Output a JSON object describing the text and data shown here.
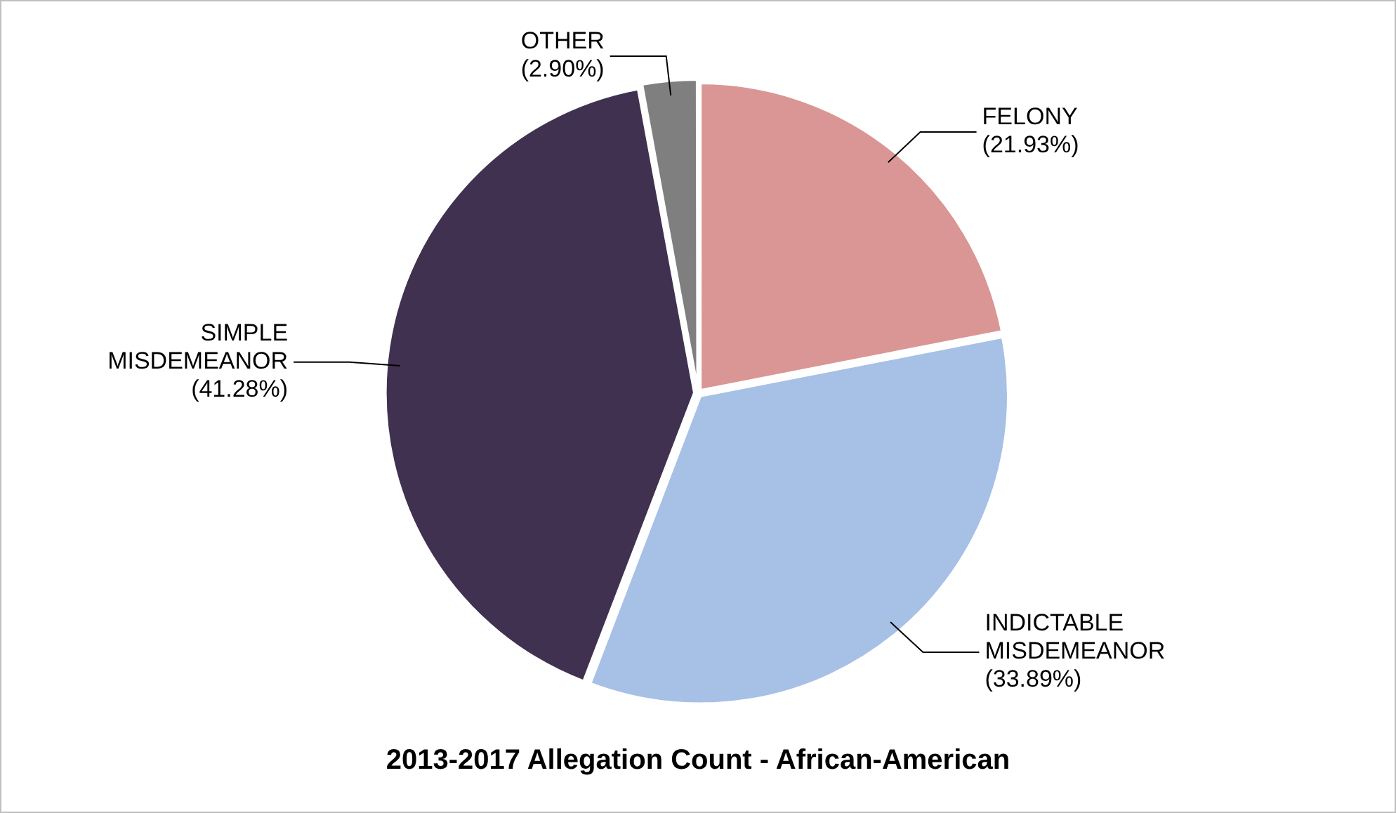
{
  "chart_data": {
    "type": "pie",
    "title": "2013-2017 Allegation Count - African-American",
    "categories": [
      "FELONY",
      "INDICTABLE MISDEMEANOR",
      "SIMPLE MISDEMEANOR",
      "OTHER"
    ],
    "values": [
      21.93,
      33.89,
      41.28,
      2.9
    ],
    "colors": [
      "#d99694",
      "#a7c0e6",
      "#403151",
      "#7f7f7f"
    ],
    "value_labels": [
      "(21.93%)",
      "(33.89%)",
      "(41.28%)",
      "(2.90%)"
    ],
    "legend": false
  }
}
